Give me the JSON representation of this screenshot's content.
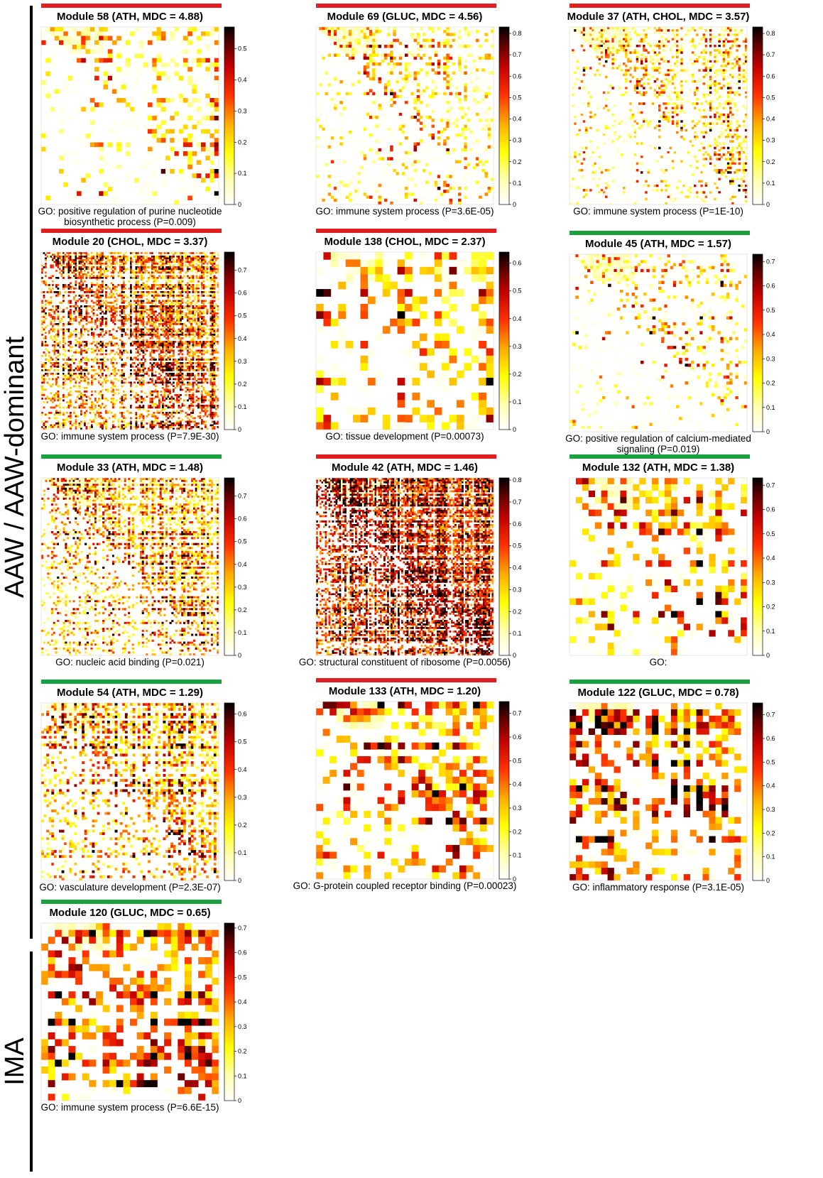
{
  "groups": [
    {
      "label": "AAW / AAW-dominant"
    },
    {
      "label": "IMA"
    }
  ],
  "chart_data": [
    {
      "type": "heatmap",
      "title": "Module 58 (ATH, MDC = 4.88)",
      "bar_color": "#e02020",
      "caption": [
        "GO: positive regulation of purine nucleotide",
        "biosynthetic process (P=0.009)"
      ],
      "colorbar_ticks": [
        "0",
        "0.1",
        "0.2",
        "0.3",
        "0.4",
        "0.5"
      ],
      "colorbar_max": 0.57,
      "n": 40,
      "density": "sparse"
    },
    {
      "type": "heatmap",
      "title": "Module 69 (GLUC, MDC = 4.56)",
      "bar_color": "#e02020",
      "caption": [
        "GO: immune system process (P=3.6E-05)"
      ],
      "colorbar_ticks": [
        "0",
        "0.1",
        "0.2",
        "0.3",
        "0.4",
        "0.5",
        "0.6",
        "0.7",
        "0.8"
      ],
      "colorbar_max": 0.83,
      "n": 60,
      "density": "sparse"
    },
    {
      "type": "heatmap",
      "title": "Module 37 (ATH, CHOL, MDC = 3.57)",
      "bar_color": "#e02020",
      "caption": [
        "GO: immune system process (P=1E-10)"
      ],
      "colorbar_ticks": [
        "0",
        "0.1",
        "0.2",
        "0.3",
        "0.4",
        "0.5",
        "0.6",
        "0.7",
        "0.8"
      ],
      "colorbar_max": 0.83,
      "n": 80,
      "density": "sparse"
    },
    {
      "type": "heatmap",
      "title": "Module 20 (CHOL, MDC = 3.37)",
      "bar_color": "#e02020",
      "caption": [
        "GO: immune system process (P=7.9E-30)"
      ],
      "colorbar_ticks": [
        "0",
        "0.1",
        "0.2",
        "0.3",
        "0.4",
        "0.5",
        "0.6",
        "0.7"
      ],
      "colorbar_max": 0.78,
      "n": 100,
      "density": "dense"
    },
    {
      "type": "heatmap",
      "title": "Module 138 (CHOL, MDC = 2.37)",
      "bar_color": "#e02020",
      "caption": [
        "GO: tissue development (P=0.00073)"
      ],
      "colorbar_ticks": [
        "0",
        "0.1",
        "0.2",
        "0.3",
        "0.4",
        "0.5",
        "0.6"
      ],
      "colorbar_max": 0.64,
      "n": 24,
      "density": "medium"
    },
    {
      "type": "heatmap",
      "title": "Module 45 (ATH, MDC = 1.57)",
      "bar_color": "#1aa040",
      "caption": [
        "GO: positive regulation of calcium-mediated",
        "signaling (P=0.019)"
      ],
      "colorbar_ticks": [
        "0",
        "0.1",
        "0.2",
        "0.3",
        "0.4",
        "0.5",
        "0.6",
        "0.7"
      ],
      "colorbar_max": 0.73,
      "n": 60,
      "density": "vsparse"
    },
    {
      "type": "heatmap",
      "title": "Module 33 (ATH, MDC = 1.48)",
      "bar_color": "#1aa040",
      "caption": [
        "GO: nucleic acid binding (P=0.021)"
      ],
      "colorbar_ticks": [
        "0",
        "0.1",
        "0.2",
        "0.3",
        "0.4",
        "0.5",
        "0.6",
        "0.7"
      ],
      "colorbar_max": 0.78,
      "n": 90,
      "density": "medium"
    },
    {
      "type": "heatmap",
      "title": "Module 42 (ATH, MDC = 1.46)",
      "bar_color": "#e02020",
      "caption": [
        "GO: structural constituent of ribosome (P=0.0056)"
      ],
      "colorbar_ticks": [
        "0",
        "0.1",
        "0.2",
        "0.3",
        "0.4",
        "0.5",
        "0.6",
        "0.7",
        "0.8"
      ],
      "colorbar_max": 0.81,
      "n": 100,
      "density": "vdense"
    },
    {
      "type": "heatmap",
      "title": "Module 132 (ATH, MDC = 1.38)",
      "bar_color": "#1aa040",
      "caption": [
        "GO:"
      ],
      "colorbar_ticks": [
        "0",
        "0.1",
        "0.2",
        "0.3",
        "0.4",
        "0.5",
        "0.6",
        "0.7"
      ],
      "colorbar_max": 0.73,
      "n": 28,
      "density": "medium"
    },
    {
      "type": "heatmap",
      "title": "Module 54 (ATH, MDC = 1.29)",
      "bar_color": "#1aa040",
      "caption": [
        "GO: vasculature development (P=2.3E-07)"
      ],
      "colorbar_ticks": [
        "0",
        "0.1",
        "0.2",
        "0.3",
        "0.4",
        "0.5",
        "0.6"
      ],
      "colorbar_max": 0.64,
      "n": 70,
      "density": "medium"
    },
    {
      "type": "heatmap",
      "title": "Module 133 (ATH, MDC = 1.20)",
      "bar_color": "#e02020",
      "caption": [
        "GO: G-protein coupled receptor binding (P=0.00023)"
      ],
      "colorbar_ticks": [
        "0",
        "0.1",
        "0.2",
        "0.3",
        "0.4",
        "0.5",
        "0.6",
        "0.7"
      ],
      "colorbar_max": 0.75,
      "n": 26,
      "density": "medium"
    },
    {
      "type": "heatmap",
      "title": "Module 122 (GLUC, MDC = 0.78)",
      "bar_color": "#1aa040",
      "caption": [
        "GO: inflammatory response (P=3.1E-05)"
      ],
      "colorbar_ticks": [
        "0",
        "0.1",
        "0.2",
        "0.3",
        "0.4",
        "0.5",
        "0.6",
        "0.7"
      ],
      "colorbar_max": 0.75,
      "n": 28,
      "density": "dense"
    },
    {
      "type": "heatmap",
      "title": "Module 120 (GLUC, MDC = 0.65)",
      "bar_color": "#1aa040",
      "caption": [
        "GO: immune system process (P=6.6E-15)"
      ],
      "colorbar_ticks": [
        "0",
        "0.1",
        "0.2",
        "0.3",
        "0.4",
        "0.5",
        "0.6",
        "0.7"
      ],
      "colorbar_max": 0.72,
      "n": 26,
      "density": "dense"
    }
  ]
}
